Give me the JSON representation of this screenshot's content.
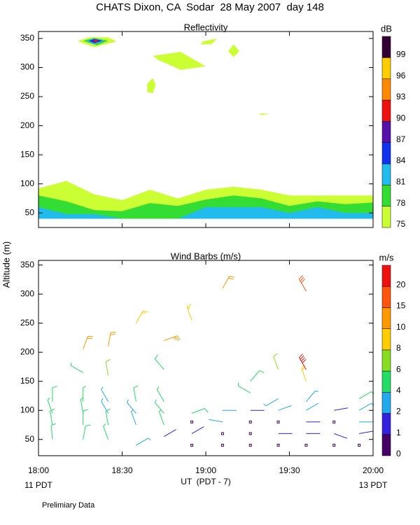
{
  "title": "CHATS Dixon, CA  Sodar  28 May 2007  day 148",
  "y_label": "Altitude (m)",
  "footer_left": "11 PDT",
  "footer_right": "13 PDT",
  "note": "Prelimiary Data",
  "chart_data": [
    {
      "type": "contour",
      "title": "Reflectivity",
      "xlim": [
        0,
        120
      ],
      "xticks": [
        0,
        30,
        60,
        90,
        120
      ],
      "ylim": [
        25,
        362
      ],
      "yticks": [
        50,
        100,
        150,
        200,
        250,
        300,
        350
      ],
      "colorbar": {
        "label": "dB",
        "levels": [
          75,
          78,
          81,
          84,
          87,
          90,
          93,
          96,
          99
        ],
        "colors": [
          "#ccff33",
          "#33dd33",
          "#22bbee",
          "#1133ee",
          "#5511aa",
          "#ee1111",
          "#ff8800",
          "#ffcc00",
          "#330033"
        ]
      },
      "regions": [
        {
          "level": 75,
          "x": [
            0,
            10,
            20,
            30,
            40,
            50,
            60,
            70,
            80,
            90,
            100,
            110,
            120,
            120,
            0
          ],
          "y": [
            92,
            105,
            82,
            72,
            90,
            75,
            90,
            95,
            90,
            80,
            80,
            80,
            80,
            40,
            40
          ]
        },
        {
          "level": 78,
          "x": [
            0,
            10,
            20,
            30,
            40,
            50,
            60,
            70,
            80,
            90,
            100,
            110,
            120,
            120,
            0
          ],
          "y": [
            80,
            70,
            55,
            53,
            67,
            62,
            73,
            80,
            75,
            62,
            70,
            65,
            68,
            40,
            40
          ]
        },
        {
          "level": 81,
          "x": [
            0,
            10,
            20,
            30,
            40,
            50,
            60,
            70,
            80,
            90,
            100,
            110,
            120,
            120,
            0
          ],
          "y": [
            60,
            48,
            48,
            40,
            40,
            40,
            60,
            60,
            60,
            50,
            60,
            50,
            50,
            40,
            40
          ]
        },
        {
          "level": 75,
          "x": [
            14,
            18,
            25,
            28,
            20
          ],
          "y": [
            345,
            352,
            352,
            345,
            335
          ]
        },
        {
          "level": 78,
          "x": [
            16,
            20,
            25,
            21
          ],
          "y": [
            346,
            351,
            346,
            338
          ]
        },
        {
          "level": 81,
          "x": [
            17,
            20,
            24,
            20
          ],
          "y": [
            346,
            350,
            346,
            340
          ]
        },
        {
          "level": 84,
          "x": [
            18,
            20,
            23,
            20
          ],
          "y": [
            346,
            349,
            346,
            342
          ]
        },
        {
          "level": 87,
          "x": [
            19,
            20.5,
            22,
            20.5
          ],
          "y": [
            346,
            348.5,
            346,
            343
          ]
        },
        {
          "level": 90,
          "x": [
            19.5,
            20.5,
            21.5,
            20.5
          ],
          "y": [
            346,
            348,
            346,
            344
          ]
        },
        {
          "level": 75,
          "x": [
            41,
            51,
            60,
            51,
            43
          ],
          "y": [
            320,
            327,
            302,
            296,
            313
          ]
        },
        {
          "level": 75,
          "x": [
            59,
            64,
            62,
            58
          ],
          "y": [
            345,
            350,
            340,
            340
          ]
        },
        {
          "level": 75,
          "x": [
            68,
            70,
            72,
            70
          ],
          "y": [
            328,
            340,
            328,
            318
          ]
        },
        {
          "level": 75,
          "x": [
            39,
            41,
            42,
            41,
            39
          ],
          "y": [
            272,
            282,
            270,
            256,
            258
          ]
        },
        {
          "level": 75,
          "x": [
            79,
            83,
            80
          ],
          "y": [
            221,
            221,
            218
          ]
        }
      ]
    },
    {
      "type": "barbs",
      "title": "Wind Barbs (m/s)",
      "x_label": "UT  (PDT - 7)",
      "xlim": [
        0,
        120
      ],
      "xticks": [
        {
          "value": 0,
          "label": "18:00"
        },
        {
          "value": 30,
          "label": "18:30"
        },
        {
          "value": 60,
          "label": "19:00"
        },
        {
          "value": 90,
          "label": "19:30"
        },
        {
          "value": 120,
          "label": "20:00"
        }
      ],
      "ylim": [
        22,
        358
      ],
      "yticks": [
        50,
        100,
        150,
        200,
        250,
        300,
        350
      ],
      "colorbar": {
        "label": "m/s",
        "levels": [
          0,
          1,
          2,
          4,
          6,
          8,
          10,
          15,
          20
        ],
        "colors": [
          "#440066",
          "#3322dd",
          "#22aaee",
          "#22dd66",
          "#88dd22",
          "#ffcc00",
          "#ff9900",
          "#ff5511",
          "#ee1111"
        ]
      },
      "barbs": {
        "x": [
          5,
          5,
          5,
          5,
          16,
          16,
          16,
          16,
          16,
          16,
          25,
          25,
          25,
          25,
          25,
          25,
          35,
          35,
          35,
          35,
          35,
          45,
          45,
          45,
          45,
          45,
          45,
          55,
          55,
          55,
          55,
          55,
          66,
          66,
          66,
          66,
          66,
          76,
          76,
          76,
          76,
          76,
          76,
          86,
          86,
          86,
          86,
          86,
          86,
          96,
          96,
          96,
          96,
          96,
          96,
          96,
          96,
          106,
          106,
          106,
          106,
          115,
          115,
          115,
          115,
          115
        ],
        "y": [
          50,
          75,
          95,
          115,
          50,
          75,
          95,
          115,
          165,
          205,
          50,
          75,
          95,
          115,
          160,
          210,
          40,
          75,
          95,
          115,
          250,
          55,
          75,
          95,
          115,
          170,
          220,
          40,
          60,
          80,
          95,
          255,
          40,
          60,
          80,
          100,
          310,
          40,
          60,
          80,
          100,
          130,
          150,
          40,
          60,
          80,
          100,
          120,
          170,
          40,
          60,
          80,
          100,
          115,
          150,
          170,
          305,
          40,
          60,
          80,
          100,
          40,
          60,
          80,
          100,
          120
        ],
        "speed": [
          5,
          5,
          4,
          5,
          5,
          5,
          4,
          4,
          4,
          12,
          4,
          5,
          3,
          3,
          7,
          10,
          3,
          3,
          3,
          5,
          9,
          1,
          4,
          4,
          4,
          5,
          14,
          0,
          1,
          0,
          5,
          8,
          0,
          0,
          2,
          2,
          12,
          0,
          0,
          0,
          1,
          4,
          5,
          0,
          1,
          0,
          2,
          3,
          7,
          0,
          1,
          1,
          2,
          3,
          9,
          20,
          15,
          0,
          1,
          0,
          1,
          0,
          1,
          2,
          3,
          4
        ],
        "direction": [
          355,
          350,
          340,
          0,
          10,
          0,
          350,
          0,
          300,
          20,
          340,
          350,
          330,
          330,
          350,
          10,
          60,
          340,
          320,
          350,
          30,
          60,
          340,
          320,
          330,
          320,
          70,
          0,
          60,
          0,
          70,
          340,
          0,
          0,
          280,
          90,
          30,
          0,
          0,
          0,
          90,
          300,
          40,
          0,
          90,
          0,
          70,
          240,
          340,
          0,
          90,
          90,
          60,
          40,
          340,
          330,
          330,
          0,
          110,
          0,
          80,
          0,
          80,
          90,
          60,
          60
        ]
      }
    }
  ]
}
